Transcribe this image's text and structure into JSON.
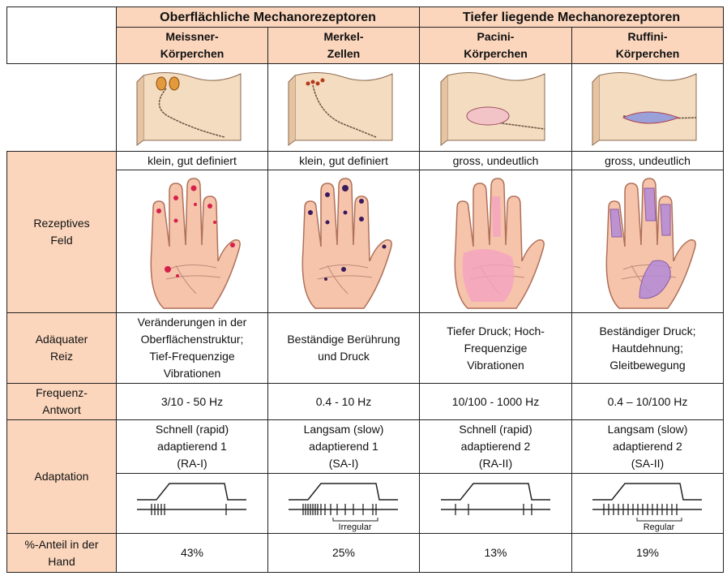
{
  "header": {
    "groups": [
      "Oberflächliche Mechanorezeptoren",
      "Tiefer liegende Mechanorezeptoren"
    ]
  },
  "row_labels": {
    "field": [
      "Rezeptives",
      "Feld"
    ],
    "stimulus": [
      "Adäquater",
      "Reiz"
    ],
    "frequency": [
      "Frequenz-",
      "Antwort"
    ],
    "adaptation": [
      "Adaptation"
    ],
    "share": [
      "%-Anteil in der",
      "Hand"
    ]
  },
  "receptors": [
    {
      "name": [
        "Meissner-",
        "Körperchen"
      ],
      "field": "klein, gut definiert",
      "stimulus": [
        "Veränderungen in der",
        "Oberflächenstruktur;",
        "Tief-Frequenzige",
        "Vibrationen"
      ],
      "frequency": "3/10 - 50 Hz",
      "adaptation": [
        "Schnell (rapid)",
        "adaptierend 1",
        "(RA-I)"
      ],
      "share": "43%"
    },
    {
      "name": [
        "Merkel-",
        "Zellen"
      ],
      "field": "klein, gut definiert",
      "stimulus": [
        "Beständige Berührung",
        "und Druck"
      ],
      "frequency": "0.4 - 10 Hz",
      "adaptation": [
        "Langsam (slow)",
        "adaptierend 1",
        "(SA-I)"
      ],
      "pattern_label": "Irregular",
      "share": "25%"
    },
    {
      "name": [
        "Pacini-",
        "Körperchen"
      ],
      "field": "gross, undeutlich",
      "stimulus": [
        "Tiefer Druck; Hoch-",
        "Frequenzige",
        "Vibrationen"
      ],
      "frequency": "10/100 - 1000 Hz",
      "adaptation": [
        "Schnell (rapid)",
        "adaptierend 2",
        "(RA-II)"
      ],
      "share": "13%"
    },
    {
      "name": [
        "Ruffini-",
        "Körperchen"
      ],
      "field": "gross, undeutlich",
      "stimulus": [
        "Beständiger Druck;",
        "Hautdehnung;",
        "Gleitbewegung"
      ],
      "frequency": "0.4 – 10/100 Hz",
      "adaptation": [
        "Langsam (slow)",
        "adaptierend 2",
        "(SA-II)"
      ],
      "pattern_label": "Regular",
      "share": "19%"
    }
  ]
}
